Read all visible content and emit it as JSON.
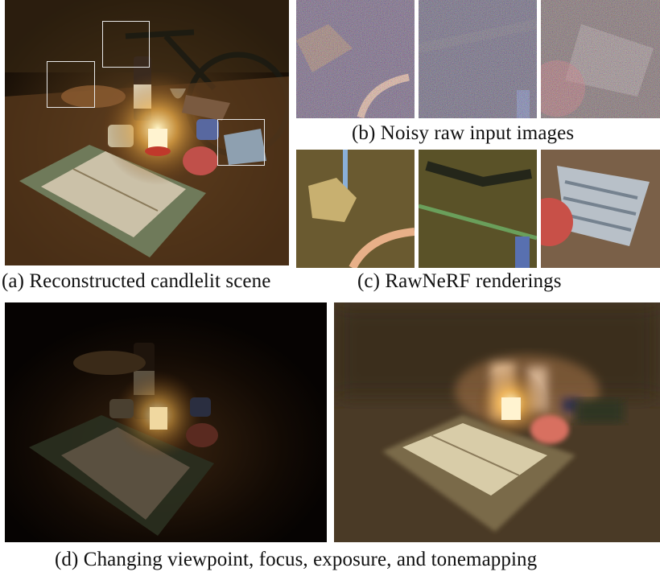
{
  "figure": {
    "panel_a": {
      "caption": "(a) Reconstructed candlelit scene"
    },
    "panel_b": {
      "caption": "(b) Noisy raw input images"
    },
    "panel_c": {
      "caption": "(c) RawNeRF renderings"
    },
    "panel_d": {
      "caption": "(d) Changing viewpoint, focus, exposure, and tonemapping"
    }
  }
}
